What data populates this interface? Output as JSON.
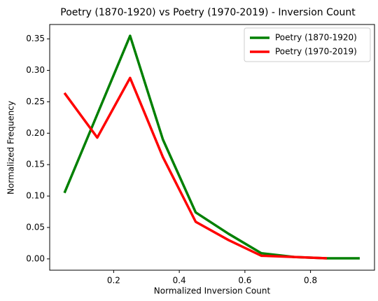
{
  "chart_data": {
    "type": "line",
    "title": "Poetry (1870-1920) vs Poetry (1970-2019) - Inversion Count",
    "x_label": "Normalized Inversion Count",
    "y_label": "Normalized Frequency",
    "x": [
      0.05,
      0.15,
      0.25,
      0.35,
      0.45,
      0.55,
      0.65,
      0.75,
      0.85,
      0.95
    ],
    "series": [
      {
        "name": "Poetry (1870-1920)",
        "color": "#008000",
        "values": [
          0.105,
          0.23,
          0.355,
          0.19,
          0.074,
          0.04,
          0.009,
          0.003,
          0.001,
          0.001
        ]
      },
      {
        "name": "Poetry (1970-2019)",
        "color": "#ff0000",
        "values": [
          0.264,
          0.193,
          0.288,
          0.162,
          0.059,
          0.03,
          0.005,
          0.003,
          0.001,
          null
        ]
      }
    ],
    "xlim": [
      0.005,
      0.995
    ],
    "ylim": [
      -0.018,
      0.373
    ],
    "xticks": [
      0.2,
      0.4,
      0.6,
      0.8
    ],
    "yticks": [
      {
        "value": 0,
        "label": "0.00"
      },
      {
        "value": 0.05,
        "label": "0.05"
      },
      {
        "value": 0.1,
        "label": "0.10"
      },
      {
        "value": 0.15,
        "label": "0.15"
      },
      {
        "value": 0.2,
        "label": "0.20"
      },
      {
        "value": 0.25,
        "label": "0.25"
      },
      {
        "value": 0.3,
        "label": "0.30"
      },
      {
        "value": 0.35,
        "label": "0.35"
      }
    ],
    "legend": "upper right"
  }
}
